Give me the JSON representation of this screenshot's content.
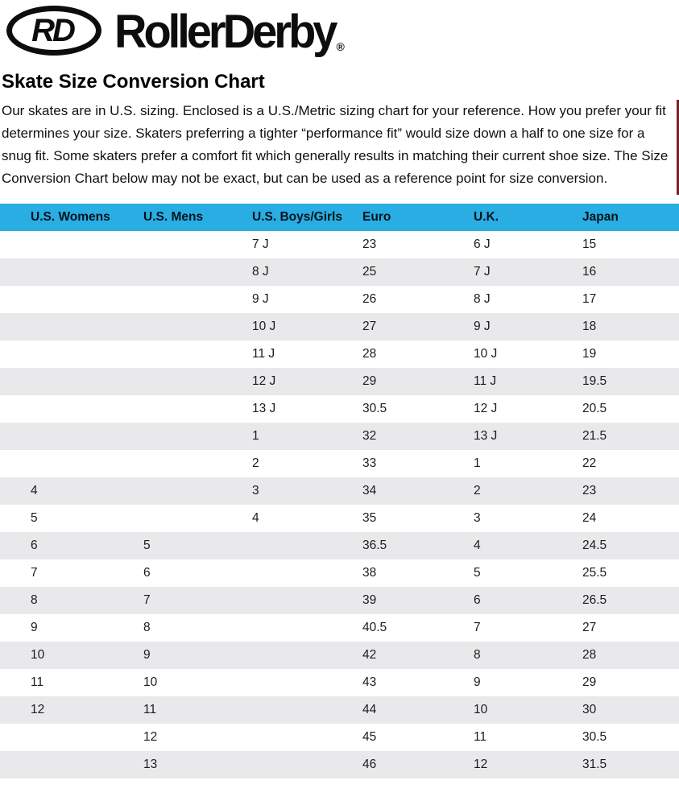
{
  "logo": {
    "monogram": "RD",
    "wordmark": "RollerDerby",
    "registered": "®"
  },
  "page": {
    "title": "Skate Size Conversion Chart",
    "intro": "Our skates are in U.S. sizing. Enclosed is a U.S./Metric sizing chart for your reference. How you prefer your fit determines your size. Skaters preferring a tighter “performance fit” would size down a half to one size for a snug fit. Some skaters prefer a comfort fit which generally results in matching their current shoe size. The Size Conversion Chart below may not be exact, but can be used as a reference point for size conversion."
  },
  "colors": {
    "accent_cyan": "#29ADE3",
    "row_alt_gray": "#E9E9EB",
    "red_edge_bar": "#7B222B"
  },
  "chart_data": {
    "type": "table",
    "title": "Skate Size Conversion Chart",
    "columns": [
      "U.S. Womens",
      "U.S. Mens",
      "U.S. Boys/Girls",
      "Euro",
      "U.K.",
      "Japan"
    ],
    "rows": [
      [
        "",
        "",
        "7 J",
        "23",
        "6 J",
        "15"
      ],
      [
        "",
        "",
        "8 J",
        "25",
        "7 J",
        "16"
      ],
      [
        "",
        "",
        "9 J",
        "26",
        "8 J",
        "17"
      ],
      [
        "",
        "",
        "10 J",
        "27",
        "9 J",
        "18"
      ],
      [
        "",
        "",
        "11 J",
        "28",
        "10 J",
        "19"
      ],
      [
        "",
        "",
        "12 J",
        "29",
        "11 J",
        "19.5"
      ],
      [
        "",
        "",
        "13 J",
        "30.5",
        "12 J",
        "20.5"
      ],
      [
        "",
        "",
        "1",
        "32",
        "13 J",
        "21.5"
      ],
      [
        "",
        "",
        "2",
        "33",
        "1",
        "22"
      ],
      [
        "4",
        "",
        "3",
        "34",
        "2",
        "23"
      ],
      [
        "5",
        "",
        "4",
        "35",
        "3",
        "24"
      ],
      [
        "6",
        "5",
        "",
        "36.5",
        "4",
        "24.5"
      ],
      [
        "7",
        "6",
        "",
        "38",
        "5",
        "25.5"
      ],
      [
        "8",
        "7",
        "",
        "39",
        "6",
        "26.5"
      ],
      [
        "9",
        "8",
        "",
        "40.5",
        "7",
        "27"
      ],
      [
        "10",
        "9",
        "",
        "42",
        "8",
        "28"
      ],
      [
        "11",
        "10",
        "",
        "43",
        "9",
        "29"
      ],
      [
        "12",
        "11",
        "",
        "44",
        "10",
        "30"
      ],
      [
        "",
        "12",
        "",
        "45",
        "11",
        "30.5"
      ],
      [
        "",
        "13",
        "",
        "46",
        "12",
        "31.5"
      ]
    ]
  }
}
